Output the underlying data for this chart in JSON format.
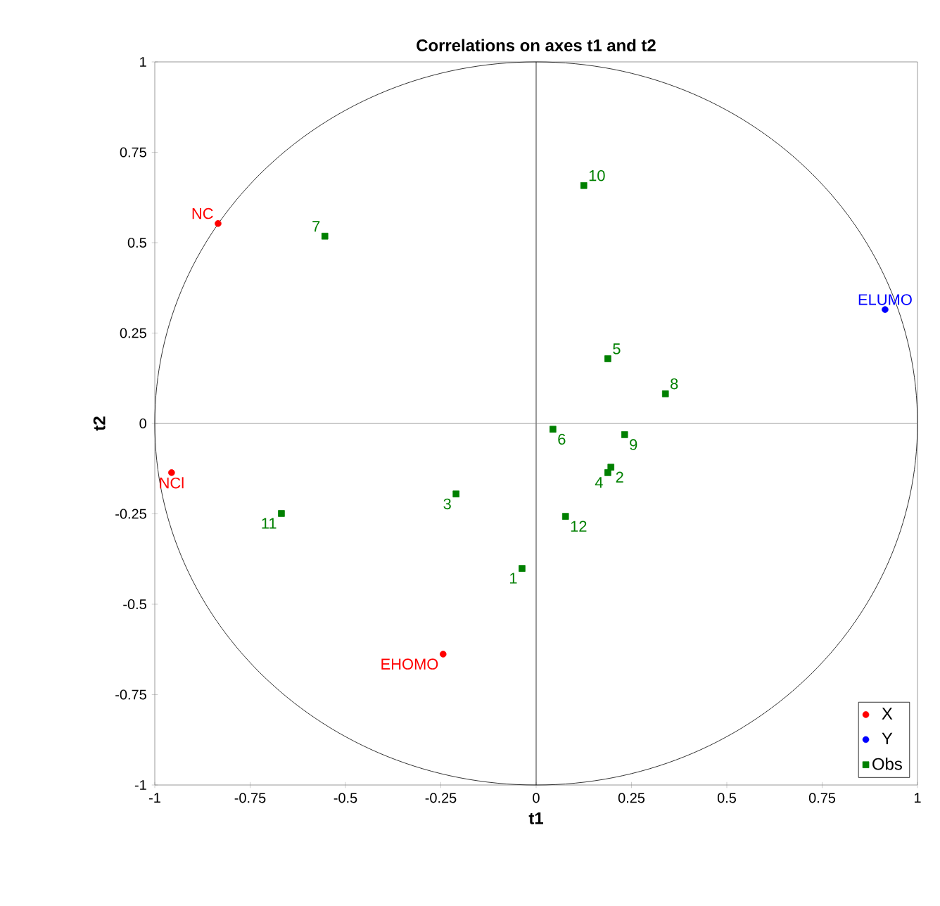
{
  "chart_data": {
    "type": "scatter",
    "title": "Correlations on axes t1 and t2",
    "xlabel": "t1",
    "ylabel": "t2",
    "xlim": [
      -1,
      1
    ],
    "ylim": [
      -1,
      1
    ],
    "xticks": [
      -1,
      -0.75,
      -0.5,
      -0.25,
      0,
      0.25,
      0.5,
      0.75,
      1
    ],
    "yticks": [
      -1,
      -0.75,
      -0.5,
      -0.25,
      0,
      0.25,
      0.5,
      0.75,
      1
    ],
    "grid": false,
    "legend": "bottom right",
    "ref_lines": [
      {
        "axis": "x",
        "value": 0,
        "color": "#000000"
      },
      {
        "axis": "y",
        "value": 0,
        "color": "#808080"
      }
    ],
    "series": [
      {
        "name": "X",
        "color": "#ff0000",
        "marker": "circle",
        "x": [
          -0.834,
          -0.956,
          -0.244
        ],
        "values": [
          0.553,
          -0.136,
          -0.638
        ]
      },
      {
        "name": "Y",
        "color": "#0000ff",
        "marker": "circle",
        "x": [
          0.915
        ],
        "values": [
          0.315
        ]
      },
      {
        "name": "Obs",
        "color": "#008000",
        "marker": "square",
        "x": [
          -0.037,
          0.196,
          -0.21,
          0.188,
          0.188,
          0.044,
          -0.554,
          0.339,
          0.232,
          0.125,
          -0.668,
          0.077
        ],
        "values": [
          -0.401,
          -0.121,
          -0.195,
          -0.136,
          0.179,
          -0.016,
          0.518,
          0.082,
          -0.031,
          0.658,
          -0.249,
          -0.257
        ]
      }
    ],
    "annotations": [
      {
        "text": "NC",
        "x": -0.834,
        "y": 0.553
      },
      {
        "text": "NCl",
        "x": -0.956,
        "y": -0.136
      },
      {
        "text": "EHOMO",
        "x": -0.244,
        "y": -0.638
      },
      {
        "text": "ELUMO",
        "x": 0.915,
        "y": 0.315
      },
      {
        "text": "1",
        "x": -0.037,
        "y": -0.401
      },
      {
        "text": "2",
        "x": 0.196,
        "y": -0.121
      },
      {
        "text": "3",
        "x": -0.21,
        "y": -0.195
      },
      {
        "text": "4",
        "x": 0.188,
        "y": -0.136
      },
      {
        "text": "5",
        "x": 0.188,
        "y": 0.179
      },
      {
        "text": "6",
        "x": 0.044,
        "y": -0.016
      },
      {
        "text": "7",
        "x": -0.554,
        "y": 0.518
      },
      {
        "text": "8",
        "x": 0.339,
        "y": 0.082
      },
      {
        "text": "9",
        "x": 0.232,
        "y": -0.031
      },
      {
        "text": "10",
        "x": 0.125,
        "y": 0.658
      },
      {
        "text": "11",
        "x": -0.668,
        "y": -0.249
      },
      {
        "text": "12",
        "x": 0.077,
        "y": -0.257
      }
    ]
  }
}
